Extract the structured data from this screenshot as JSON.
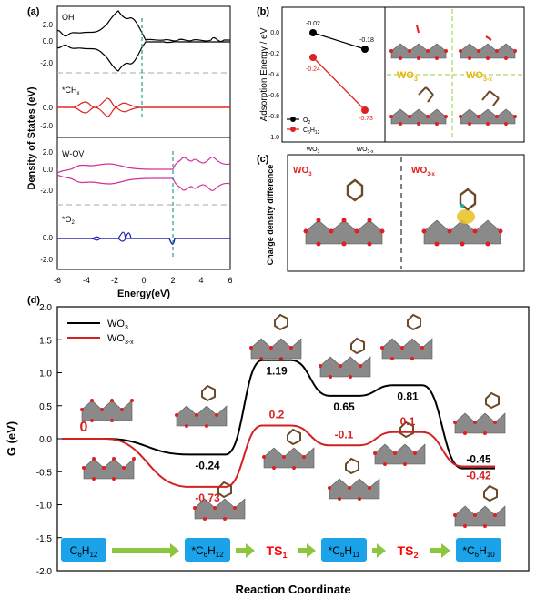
{
  "panel_a": {
    "label": "(a)",
    "ylabel": "Density of States (eV)",
    "xlabel": "Energy(eV)",
    "xticks": [
      "-6",
      "-4",
      "-2",
      "0",
      "2",
      "4",
      "6"
    ],
    "blocks": [
      {
        "name": "OH",
        "color": "#000000",
        "yticks": [
          "2.0",
          "0.0",
          "-2.0"
        ]
      },
      {
        "name": "*CH",
        "sub": "x",
        "color": "#e02020",
        "yticks": [
          "0.0",
          "-2.0"
        ]
      },
      {
        "name": "W-OV",
        "color": "#d0309a",
        "yticks": [
          "2.0",
          "0.0",
          "-2.0"
        ]
      },
      {
        "name": "*O",
        "sub": "2",
        "color": "#2020b0",
        "yticks": [
          "0.0",
          "-2.0"
        ]
      }
    ]
  },
  "panel_b": {
    "label": "(b)",
    "ylabel": "Adsorption Energy / eV",
    "yticks": [
      "0.0",
      "-0.2",
      "-0.4",
      "-0.6",
      "-0.8",
      "-1.0"
    ],
    "xticks": [
      {
        "main": "WO",
        "sub": "3"
      },
      {
        "main": "WO",
        "sub": "3-x"
      }
    ],
    "o2_values": [
      "-0.02",
      "-0.18"
    ],
    "c6_values": [
      "-0.24",
      "-0.73"
    ],
    "legend_o2": {
      "main": "O",
      "sub": "2"
    },
    "legend_c6": {
      "main": "C",
      "sub1": "6",
      "mid": "H",
      "sub2": "12"
    },
    "wo3": {
      "main": "WO",
      "sub": "3"
    },
    "wo3x": {
      "main": "WO",
      "sub": "3-x"
    },
    "colors": {
      "o2": "#000000",
      "c6": "#e02020",
      "guide": "#8ccf3a"
    }
  },
  "panel_c": {
    "label": "(c)",
    "side_label": "Charge density difference",
    "wo3": {
      "main": "WO",
      "sub": "3"
    },
    "wo3x": {
      "main": "WO",
      "sub": "3-x"
    }
  },
  "chart_data": {
    "type": "line",
    "label": "(d)",
    "xlabel": "Reaction Coordinate",
    "ylabel": "G (eV)",
    "ylim": [
      -2.0,
      2.0
    ],
    "yticks": [
      "2.0",
      "1.5",
      "1.0",
      "0.5",
      "0.0",
      "-0.5",
      "-1.0",
      "-1.5",
      "-2.0"
    ],
    "states": [
      "C6H12",
      "*C6H12",
      "TS1",
      "*C6H11",
      "TS2",
      "*C6H10"
    ],
    "series": [
      {
        "name": "WO3",
        "color": "#000000",
        "values": [
          0,
          -0.24,
          1.19,
          0.65,
          0.81,
          -0.45
        ],
        "labels": [
          "",
          "-0.24",
          "1.19",
          "0.65",
          "0.81",
          "-0.45"
        ]
      },
      {
        "name": "WO3-x",
        "color": "#d42020",
        "values": [
          0,
          -0.73,
          0.2,
          -0.1,
          0.1,
          -0.42
        ],
        "labels": [
          "0",
          "-0.73",
          "0.2",
          "-0.1",
          "0.1",
          "-0.42"
        ]
      }
    ],
    "legend": [
      {
        "main": "WO",
        "sub": "3",
        "color": "#000000"
      },
      {
        "main": "WO",
        "sub": "3-x",
        "color": "#d42020"
      }
    ],
    "steps": [
      {
        "main": "C",
        "s1": "6",
        "m2": "H",
        "s2": "12",
        "s3": ""
      },
      {
        "main": "*C",
        "s1": "6",
        "m2": "H",
        "s2": "12",
        "s3": ""
      },
      {
        "main": "TS",
        "s1": "1",
        "m2": "",
        "s2": "",
        "s3": ""
      },
      {
        "main": "*C",
        "s1": "6",
        "m2": "H",
        "s2": "11",
        "s3": ""
      },
      {
        "main": "TS",
        "s1": "2",
        "m2": "",
        "s2": "",
        "s3": ""
      },
      {
        "main": "*C",
        "s1": "6",
        "m2": "H",
        "s2": "10",
        "s3": ""
      }
    ],
    "step_colors": {
      "box": "#1aa3e8",
      "arrow": "#8cc63f",
      "text": "#ff0000"
    }
  }
}
